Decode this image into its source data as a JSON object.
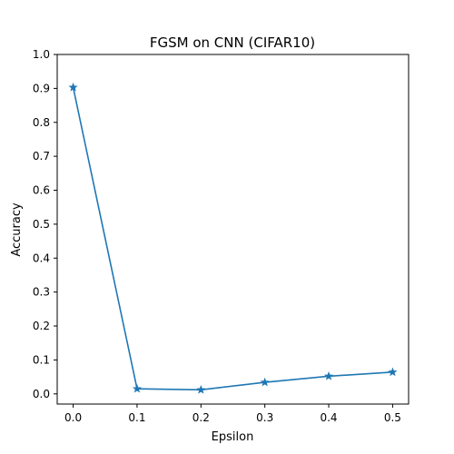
{
  "chart_data": {
    "type": "line",
    "title": "FGSM on CNN (CIFAR10)",
    "xlabel": "Epsilon",
    "ylabel": "Accuracy",
    "x": [
      0.0,
      0.1,
      0.2,
      0.3,
      0.4,
      0.5
    ],
    "series": [
      {
        "values": [
          0.903,
          0.015,
          0.012,
          0.034,
          0.052,
          0.064
        ],
        "color": "#1f77b4",
        "marker": "star"
      }
    ],
    "xlim": [
      -0.025,
      0.525
    ],
    "ylim": [
      -0.03,
      1.0
    ],
    "xticks": [
      0.0,
      0.1,
      0.2,
      0.3,
      0.4,
      0.5
    ],
    "xtick_labels": [
      "0.0",
      "0.1",
      "0.2",
      "0.3",
      "0.4",
      "0.5"
    ],
    "yticks": [
      0.0,
      0.1,
      0.2,
      0.3,
      0.4,
      0.5,
      0.6,
      0.7,
      0.8,
      0.9,
      1.0
    ],
    "ytick_labels": [
      "0.0",
      "0.1",
      "0.2",
      "0.3",
      "0.4",
      "0.5",
      "0.6",
      "0.7",
      "0.8",
      "0.9",
      "1.0"
    ],
    "grid": false,
    "legend": false
  }
}
